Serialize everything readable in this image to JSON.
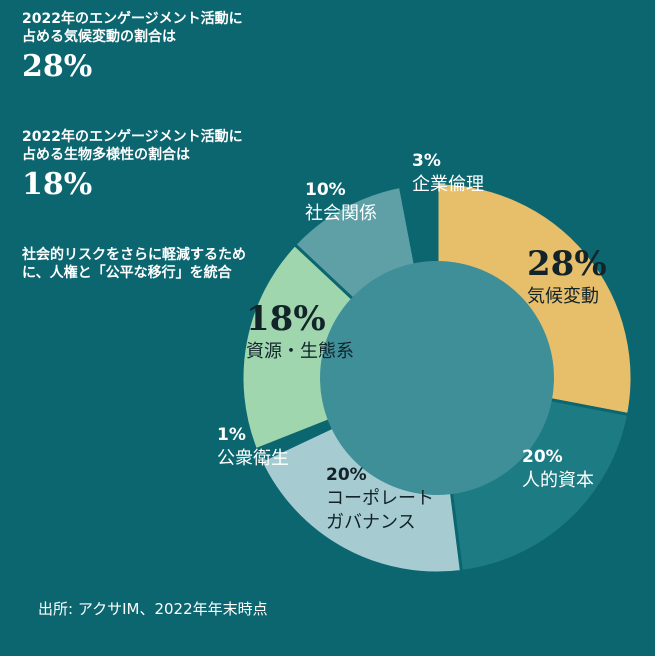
{
  "stats": [
    {
      "label": "2022年のエンゲージメント活動に占める気候変動の割合は",
      "value": "28%"
    },
    {
      "label": "2022年のエンゲージメント活動に占める生物多様性の割合は",
      "value": "18%"
    }
  ],
  "note": "社会的リスクをさらに軽減するために、人権と「公平な移行」を統合",
  "source": "出所: アクサIM、2022年年末時点",
  "colors": {
    "background": "#0b6670",
    "center": "#3f8f98"
  },
  "chart_data": {
    "type": "pie",
    "title": "",
    "slices": [
      {
        "pct_label": "28%",
        "name": "気候変動",
        "value": 28,
        "color": "#e7bf6a",
        "emphasis": true
      },
      {
        "pct_label": "20%",
        "name": "人的資本",
        "value": 20,
        "color": "#1d7b84",
        "emphasis": false
      },
      {
        "pct_label": "20%",
        "name": "コーポレートガバナンス",
        "value": 20,
        "color": "#a6ccd1",
        "emphasis": false
      },
      {
        "pct_label": "1%",
        "name": "公衆衛生",
        "value": 1,
        "color": "#0b6670",
        "emphasis": false
      },
      {
        "pct_label": "18%",
        "name": "資源・生態系",
        "value": 18,
        "color": "#9fd6ad",
        "emphasis": true
      },
      {
        "pct_label": "10%",
        "name": "社会関係",
        "value": 10,
        "color": "#5f9fa6",
        "emphasis": false
      },
      {
        "pct_label": "3%",
        "name": "企業倫理",
        "value": 3,
        "color": "#0b6670",
        "emphasis": false
      }
    ]
  }
}
